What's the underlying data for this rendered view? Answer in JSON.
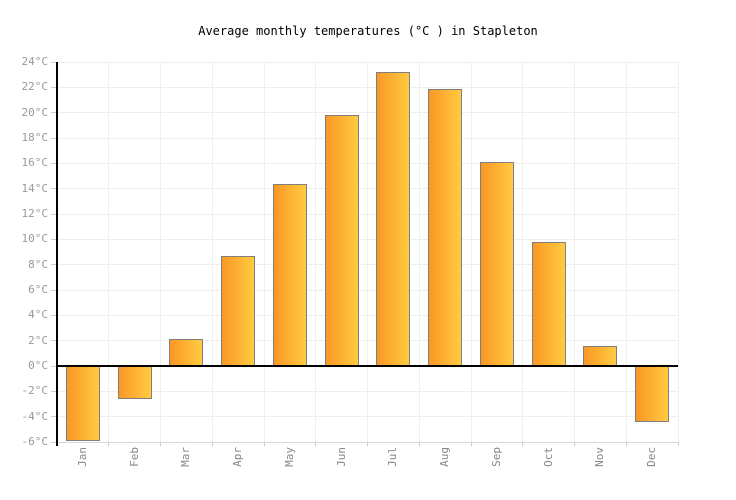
{
  "chart_data": {
    "type": "bar",
    "title": "Average monthly temperatures (°C ) in Stapleton",
    "xlabel": "",
    "ylabel": "",
    "unit": "°C",
    "categories": [
      "Jan",
      "Feb",
      "Mar",
      "Apr",
      "May",
      "Jun",
      "Jul",
      "Aug",
      "Sep",
      "Oct",
      "Nov",
      "Dec"
    ],
    "values": [
      -5.9,
      -2.6,
      2.1,
      8.7,
      14.4,
      19.8,
      23.2,
      21.9,
      16.1,
      9.8,
      1.6,
      -4.4
    ],
    "ylim": [
      -6,
      24
    ],
    "ytick_step": 2,
    "yticks": [
      "24°C",
      "22°C",
      "20°C",
      "18°C",
      "16°C",
      "14°C",
      "12°C",
      "10°C",
      "8°C",
      "6°C",
      "4°C",
      "2°C",
      "0°C",
      "-2°C",
      "-4°C",
      "-6°C"
    ],
    "grid": true,
    "legend": false,
    "colors": {
      "bar_gradient_left": "#fa9726",
      "bar_gradient_right": "#ffcb40",
      "bar_border": "#7f7f7f",
      "gridline": "#eeeeee",
      "axis": "#000000",
      "y_tick_label": "#999999",
      "x_tick_label": "#878787",
      "title": "#000000",
      "background": "#ffffff"
    }
  }
}
